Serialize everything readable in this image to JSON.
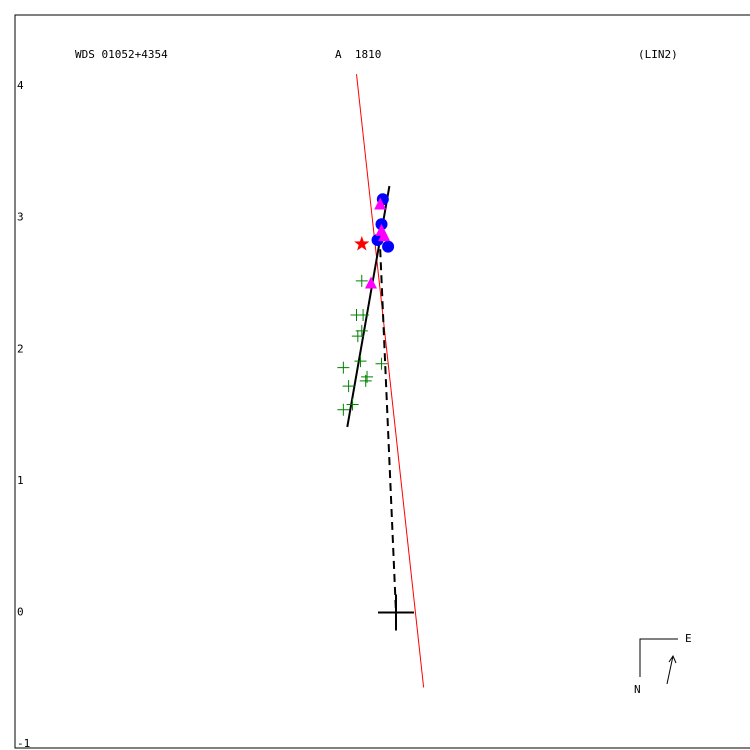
{
  "chart_data": {
    "type": "orbit",
    "title": "WDS 01052+4354",
    "subtitle": "A  1810",
    "annotation": "(LIN2)",
    "xlim": [
      -2.895,
      2.69
    ],
    "ylim": [
      -1.03,
      4.54
    ],
    "yticks": [
      4,
      3,
      2,
      1,
      0,
      -1
    ],
    "compass": [
      "E",
      "N"
    ],
    "series": [
      {
        "line": "solid",
        "color": "#ff0000",
        "x": [
          -0.3,
          0.21
        ],
        "values": [
          4.09,
          -0.57
        ]
      },
      {
        "line": "solid",
        "color": "#000000",
        "x": [
          -0.37,
          -0.05
        ],
        "values": [
          1.41,
          3.24
        ]
      },
      {
        "line": "dashed",
        "color": "#000000",
        "x": [
          -0.12,
          0
        ],
        "values": [
          2.76,
          0
        ]
      },
      {
        "marker": "plus",
        "color": "#008000",
        "x": [
          -0.26,
          -0.3,
          -0.25,
          -0.26,
          -0.29,
          -0.4,
          -0.27,
          -0.36,
          -0.22,
          -0.23,
          -0.33,
          -0.4,
          -0.11
        ],
        "values": [
          2.52,
          2.26,
          2.26,
          2.14,
          2.1,
          1.86,
          1.91,
          1.72,
          1.79,
          1.76,
          1.58,
          1.54,
          1.89
        ]
      },
      {
        "marker": "circle",
        "color": "#0000ff",
        "x": [
          -0.1,
          -0.11,
          -0.06,
          -0.14
        ],
        "values": [
          3.14,
          2.95,
          2.78,
          2.83
        ]
      },
      {
        "marker": "triangle",
        "color": "#ff00ff",
        "x": [
          -0.12,
          -0.11,
          -0.09,
          -0.19
        ],
        "values": [
          3.1,
          2.9,
          2.86,
          2.5
        ]
      },
      {
        "marker": "star",
        "color": "#ff0000",
        "x": [
          -0.26
        ],
        "values": [
          2.8
        ]
      },
      {
        "marker": "cross",
        "color": "#000000",
        "x": [
          0
        ],
        "values": [
          0
        ]
      }
    ]
  }
}
